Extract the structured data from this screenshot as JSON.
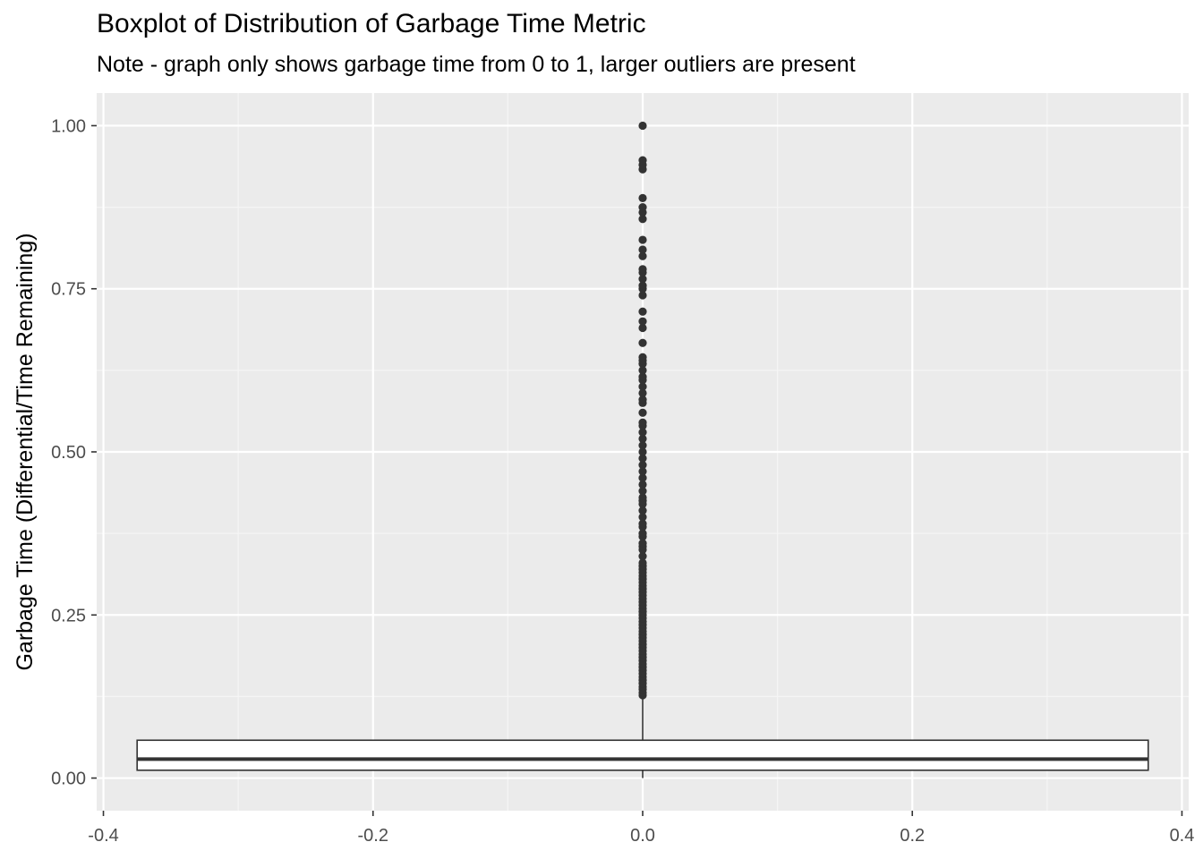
{
  "chart_data": {
    "type": "boxplot",
    "title": "Boxplot of Distribution of Garbage Time Metric",
    "subtitle": "Note - graph only shows garbage time from 0 to 1, larger outliers are present",
    "xlabel": "",
    "ylabel": "Garbage Time (Differential/Time Remaining)",
    "xlim": [
      -0.405,
      0.405
    ],
    "ylim": [
      -0.05,
      1.05
    ],
    "x_ticks": [
      -0.4,
      -0.2,
      0.0,
      0.2,
      0.4
    ],
    "x_tick_labels": [
      "-0.4",
      "-0.2",
      "0.0",
      "0.2",
      "0.4"
    ],
    "y_ticks": [
      0.0,
      0.25,
      0.5,
      0.75,
      1.0
    ],
    "y_tick_labels": [
      "0.00",
      "0.25",
      "0.50",
      "0.75",
      "1.00"
    ],
    "grid": true,
    "box": {
      "x_center": 0.0,
      "x_from": -0.375,
      "x_to": 0.375,
      "q1": 0.012,
      "median": 0.029,
      "q3": 0.058,
      "whisker_low": 0.0,
      "whisker_high": 0.125
    },
    "outliers": [
      0.127,
      0.131,
      0.136,
      0.14,
      0.145,
      0.15,
      0.155,
      0.16,
      0.165,
      0.17,
      0.175,
      0.18,
      0.185,
      0.19,
      0.195,
      0.2,
      0.205,
      0.21,
      0.215,
      0.22,
      0.225,
      0.23,
      0.235,
      0.24,
      0.245,
      0.25,
      0.255,
      0.26,
      0.265,
      0.27,
      0.275,
      0.28,
      0.285,
      0.29,
      0.295,
      0.3,
      0.305,
      0.31,
      0.315,
      0.32,
      0.325,
      0.33,
      0.34,
      0.35,
      0.355,
      0.36,
      0.37,
      0.375,
      0.385,
      0.39,
      0.4,
      0.41,
      0.42,
      0.425,
      0.43,
      0.44,
      0.45,
      0.46,
      0.47,
      0.48,
      0.49,
      0.5,
      0.51,
      0.52,
      0.53,
      0.54,
      0.545,
      0.56,
      0.575,
      0.58,
      0.59,
      0.6,
      0.61,
      0.615,
      0.625,
      0.635,
      0.64,
      0.645,
      0.667,
      0.69,
      0.7,
      0.715,
      0.74,
      0.75,
      0.755,
      0.765,
      0.775,
      0.78,
      0.8,
      0.81,
      0.825,
      0.857,
      0.867,
      0.875,
      0.889,
      0.933,
      0.94,
      0.947,
      1.0
    ],
    "colors": {
      "panel_background": "#ebebeb",
      "grid_major": "#ffffff",
      "grid_minor": "#f5f5f5",
      "box_line": "#333333",
      "outlier": "#333333",
      "tick_label": "#4d4d4d"
    }
  }
}
